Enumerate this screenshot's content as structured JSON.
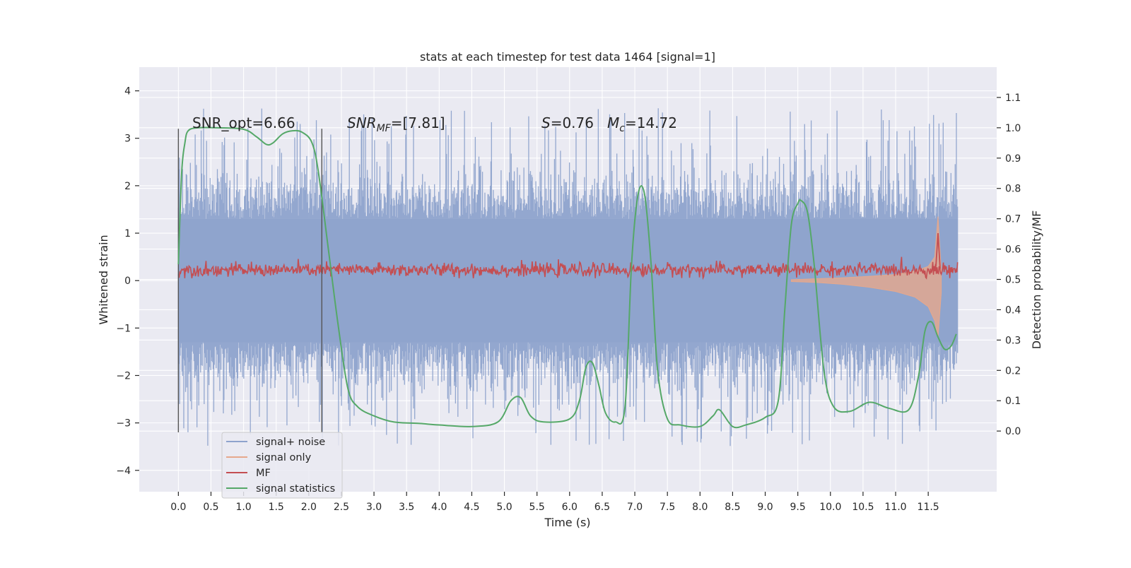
{
  "chart_data": {
    "type": "line",
    "title": "stats at each timestep for test data 1464 [signal=1]",
    "xlabel": "Time (s)",
    "ylabel": "Whitened strain",
    "ylabel_right": "Detection probability/MF",
    "xlim": [
      -0.6,
      12.55
    ],
    "ylim": [
      -4.45,
      4.5
    ],
    "ylim_right": [
      -0.2,
      1.2
    ],
    "x_ticks": [
      0.0,
      0.5,
      1.0,
      1.5,
      2.0,
      2.5,
      3.0,
      3.5,
      4.0,
      4.5,
      5.0,
      5.5,
      6.0,
      6.5,
      7.0,
      7.5,
      8.0,
      8.5,
      9.0,
      9.5,
      10.0,
      10.5,
      11.0,
      11.5
    ],
    "x_tick_labels": [
      "0.0",
      "0.5",
      "1.0",
      "1.5",
      "2.0",
      "2.5",
      "3.0",
      "3.5",
      "4.0",
      "4.5",
      "5.0",
      "5.5",
      "6.0",
      "6.5",
      "7.0",
      "7.5",
      "8.0",
      "8.5",
      "9.0",
      "9.5",
      "10.0",
      "10.5",
      "11.0",
      "11.5"
    ],
    "y_ticks": [
      -4,
      -3,
      -2,
      -1,
      0,
      1,
      2,
      3,
      4
    ],
    "y_tick_labels": [
      "−4",
      "−3",
      "−2",
      "−1",
      "0",
      "1",
      "2",
      "3",
      "4"
    ],
    "y_right_ticks": [
      0.0,
      0.1,
      0.2,
      0.3,
      0.4,
      0.5,
      0.6,
      0.7,
      0.8,
      0.9,
      1.0,
      1.1
    ],
    "y_right_tick_labels": [
      "0.0",
      "0.1",
      "0.2",
      "0.3",
      "0.4",
      "0.5",
      "0.6",
      "0.7",
      "0.8",
      "0.9",
      "1.0",
      "1.1"
    ],
    "grid": true,
    "legend_position": "bottom-left",
    "colors": {
      "background": "#eaeaf2",
      "grid": "#ffffff",
      "signal_noise": "#8ea3cc",
      "signal_only": "#e6a88c",
      "mf": "#c44e52",
      "signal_statistics": "#55a868",
      "window_lines": "#555555"
    },
    "annotations": {
      "snr_opt": "SNR_opt=6.66",
      "snr_mf_prefix": "SNR",
      "snr_mf_sub": "MF",
      "snr_mf_value": "=[7.81]",
      "s_symbol": "S",
      "s_value": "=0.76",
      "mc_symbol": "M",
      "mc_sub": "c",
      "mc_value": "=14.72"
    },
    "window_lines_x": [
      0.0,
      2.2
    ],
    "window_lines_y": [
      -3.2,
      3.2
    ],
    "series": [
      {
        "name": "signal+ noise",
        "axis": "left",
        "x_range": [
          0.0,
          11.95
        ],
        "envelope": [
          -2.6,
          2.6
        ],
        "extremes": [
          -4.1,
          4.1
        ],
        "dense_band": [
          -1.3,
          1.3
        ]
      },
      {
        "name": "signal only",
        "axis": "left",
        "x": [
          9.4,
          9.8,
          10.2,
          10.6,
          11.0,
          11.3,
          11.5,
          11.6,
          11.65,
          11.7
        ],
        "upper": [
          0.02,
          0.04,
          0.06,
          0.09,
          0.13,
          0.2,
          0.3,
          0.5,
          1.35,
          0.2
        ],
        "lower": [
          -0.02,
          -0.04,
          -0.08,
          -0.14,
          -0.23,
          -0.35,
          -0.55,
          -0.85,
          -1.2,
          -0.25
        ]
      },
      {
        "name": "MF",
        "axis": "left",
        "x_range": [
          0.0,
          11.95
        ],
        "base_band": [
          0.05,
          0.4
        ],
        "peak": {
          "x": 11.65,
          "y": 1.0
        }
      },
      {
        "name": "signal statistics",
        "axis": "right",
        "x": [
          0.0,
          0.05,
          0.1,
          0.15,
          0.3,
          0.6,
          1.0,
          1.2,
          1.35,
          1.45,
          1.6,
          1.75,
          1.9,
          2.05,
          2.15,
          2.3,
          2.45,
          2.6,
          2.75,
          3.0,
          3.3,
          3.7,
          4.0,
          4.5,
          4.9,
          5.1,
          5.25,
          5.4,
          5.6,
          6.0,
          6.15,
          6.25,
          6.35,
          6.45,
          6.55,
          6.7,
          6.85,
          6.95,
          7.05,
          7.15,
          7.25,
          7.35,
          7.5,
          7.7,
          8.0,
          8.2,
          8.3,
          8.5,
          8.7,
          9.0,
          9.2,
          9.3,
          9.4,
          9.5,
          9.55,
          9.65,
          9.75,
          9.9,
          10.05,
          10.3,
          10.6,
          10.9,
          11.2,
          11.35,
          11.45,
          11.55,
          11.65,
          11.75,
          11.85,
          11.93
        ],
        "y": [
          0.55,
          0.85,
          0.95,
          0.99,
          1.0,
          1.0,
          0.995,
          0.97,
          0.945,
          0.95,
          0.98,
          0.99,
          0.985,
          0.95,
          0.85,
          0.6,
          0.35,
          0.14,
          0.08,
          0.05,
          0.03,
          0.025,
          0.02,
          0.015,
          0.03,
          0.1,
          0.11,
          0.05,
          0.03,
          0.04,
          0.1,
          0.21,
          0.225,
          0.15,
          0.06,
          0.03,
          0.08,
          0.55,
          0.78,
          0.78,
          0.55,
          0.2,
          0.04,
          0.02,
          0.015,
          0.05,
          0.07,
          0.015,
          0.02,
          0.045,
          0.1,
          0.4,
          0.68,
          0.75,
          0.76,
          0.72,
          0.55,
          0.2,
          0.08,
          0.065,
          0.095,
          0.075,
          0.07,
          0.18,
          0.33,
          0.36,
          0.31,
          0.27,
          0.28,
          0.32
        ]
      }
    ]
  }
}
